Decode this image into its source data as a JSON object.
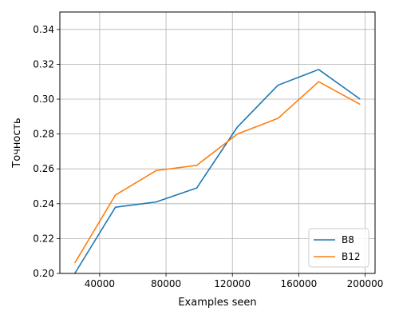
{
  "chart_data": {
    "type": "line",
    "title": "",
    "xlabel": "Examples seen",
    "ylabel": "Точность",
    "xlim": [
      16000,
      206000
    ],
    "ylim": [
      0.2,
      0.35
    ],
    "xticks": [
      40000,
      80000,
      120000,
      160000,
      200000
    ],
    "xtick_labels": [
      "40000",
      "80000",
      "120000",
      "160000",
      "200000"
    ],
    "yticks": [
      0.2,
      0.22,
      0.24,
      0.26,
      0.28,
      0.3,
      0.32,
      0.34
    ],
    "ytick_labels": [
      "0.20",
      "0.22",
      "0.24",
      "0.26",
      "0.28",
      "0.30",
      "0.32",
      "0.34"
    ],
    "grid": true,
    "legend_position": "lower-right",
    "x": [
      25000,
      49500,
      74000,
      98500,
      123000,
      147500,
      172000,
      197000
    ],
    "series": [
      {
        "name": "B8",
        "color": "#1f77b4",
        "values": [
          0.2,
          0.238,
          0.241,
          0.249,
          0.284,
          0.308,
          0.317,
          0.3
        ]
      },
      {
        "name": "B12",
        "color": "#ff7f0e",
        "values": [
          0.206,
          0.245,
          0.259,
          0.262,
          0.28,
          0.289,
          0.31,
          0.297
        ]
      }
    ]
  }
}
